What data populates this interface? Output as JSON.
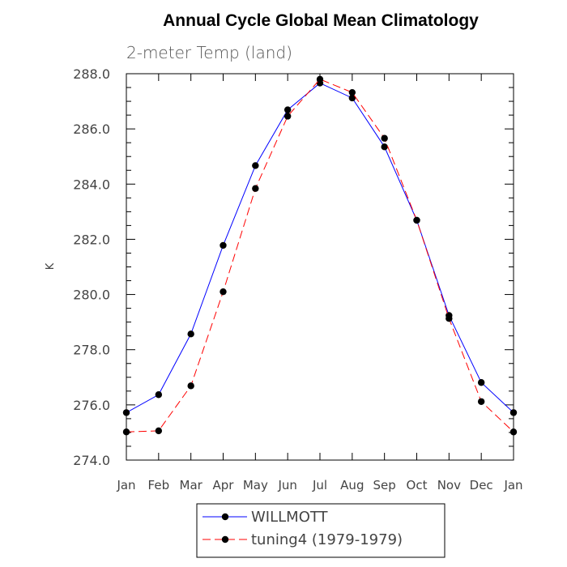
{
  "chart_data": {
    "type": "line",
    "title": "Annual Cycle Global Mean Climatology",
    "subtitle": "2-meter Temp (land)",
    "xlabel": "",
    "ylabel": "K",
    "categories": [
      "Jan",
      "Feb",
      "Mar",
      "Apr",
      "May",
      "Jun",
      "Jul",
      "Aug",
      "Sep",
      "Oct",
      "Nov",
      "Dec",
      "Jan"
    ],
    "ylim": [
      274.0,
      288.0
    ],
    "yticks": [
      "274.0",
      "276.0",
      "278.0",
      "280.0",
      "282.0",
      "284.0",
      "286.0",
      "288.0"
    ],
    "series": [
      {
        "name": "WILLMOTT",
        "color": "#0000ff",
        "dash": "solid",
        "values": [
          275.72,
          276.37,
          278.57,
          281.78,
          284.67,
          286.69,
          287.66,
          287.12,
          285.35,
          282.69,
          279.24,
          276.81,
          275.72
        ]
      },
      {
        "name": "tuning4 (1979-1979)",
        "color": "#ff0000",
        "dash": "dashed",
        "values": [
          275.02,
          275.06,
          276.69,
          280.1,
          283.84,
          286.46,
          287.8,
          287.32,
          285.66,
          282.69,
          279.13,
          276.12,
          275.02
        ]
      }
    ],
    "legend": "bottom",
    "grid": false
  }
}
